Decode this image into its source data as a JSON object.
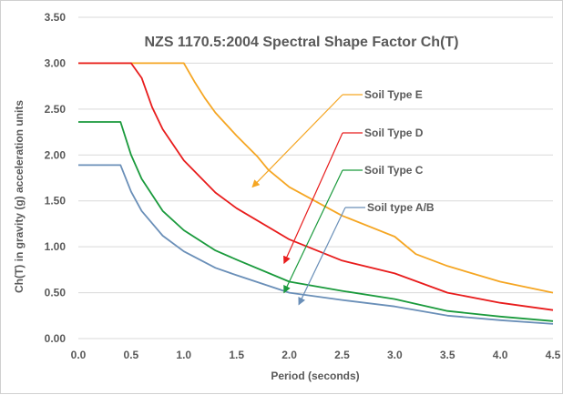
{
  "chart_data": {
    "type": "line",
    "title": "NZS 1170.5:2004 Spectral Shape Factor Ch(T)",
    "xlabel": "Period (seconds)",
    "ylabel": "Ch(T) in gravity (g) acceleration units",
    "xlim": [
      0,
      4.5
    ],
    "ylim": [
      0,
      3.5
    ],
    "xticks": [
      "0.0",
      "0.5",
      "1.0",
      "1.5",
      "2.0",
      "2.5",
      "3.0",
      "3.5",
      "4.0",
      "4.5"
    ],
    "yticks": [
      "0.00",
      "0.50",
      "1.00",
      "1.50",
      "2.00",
      "2.50",
      "3.00",
      "3.50"
    ],
    "grid": "horizontal",
    "series": [
      {
        "name": "Soil Type E",
        "color": "#f5a623",
        "x": [
          0,
          0.5,
          1.0,
          1.1,
          1.2,
          1.3,
          1.5,
          1.7,
          1.8,
          2.0,
          2.5,
          3.0,
          3.2,
          3.5,
          4.0,
          4.5
        ],
        "y": [
          3.0,
          3.0,
          3.0,
          2.8,
          2.62,
          2.46,
          2.21,
          1.98,
          1.84,
          1.65,
          1.34,
          1.11,
          0.92,
          0.79,
          0.62,
          0.5
        ],
        "label": "Soil Type E",
        "arrow_to": [
          1.65,
          1.65
        ]
      },
      {
        "name": "Soil Type D",
        "color": "#e81c1c",
        "x": [
          0,
          0.5,
          0.6,
          0.7,
          0.8,
          1.0,
          1.3,
          1.5,
          2.0,
          2.5,
          3.0,
          3.5,
          4.0,
          4.5
        ],
        "y": [
          3.0,
          3.0,
          2.84,
          2.52,
          2.28,
          1.94,
          1.59,
          1.42,
          1.08,
          0.85,
          0.71,
          0.5,
          0.39,
          0.31
        ],
        "label": "Soil Type D",
        "arrow_to": [
          1.95,
          0.82
        ]
      },
      {
        "name": "Soil Type C",
        "color": "#1a9a3c",
        "x": [
          0,
          0.4,
          0.5,
          0.6,
          0.8,
          1.0,
          1.3,
          1.5,
          2.0,
          2.5,
          3.0,
          3.5,
          4.0,
          4.5
        ],
        "y": [
          2.36,
          2.36,
          2.0,
          1.74,
          1.39,
          1.18,
          0.96,
          0.86,
          0.62,
          0.52,
          0.43,
          0.3,
          0.24,
          0.19
        ],
        "label": "Soil Type C",
        "arrow_to": [
          1.95,
          0.5
        ]
      },
      {
        "name": "Soil type A/B",
        "color": "#6a8fb8",
        "x": [
          0,
          0.4,
          0.5,
          0.6,
          0.8,
          1.0,
          1.3,
          1.5,
          2.0,
          2.5,
          3.0,
          3.5,
          4.0,
          4.5
        ],
        "y": [
          1.89,
          1.89,
          1.6,
          1.39,
          1.12,
          0.95,
          0.77,
          0.69,
          0.5,
          0.42,
          0.35,
          0.25,
          0.2,
          0.16
        ],
        "label": "Soil type A/B",
        "arrow_to": [
          2.09,
          0.37
        ]
      }
    ]
  }
}
